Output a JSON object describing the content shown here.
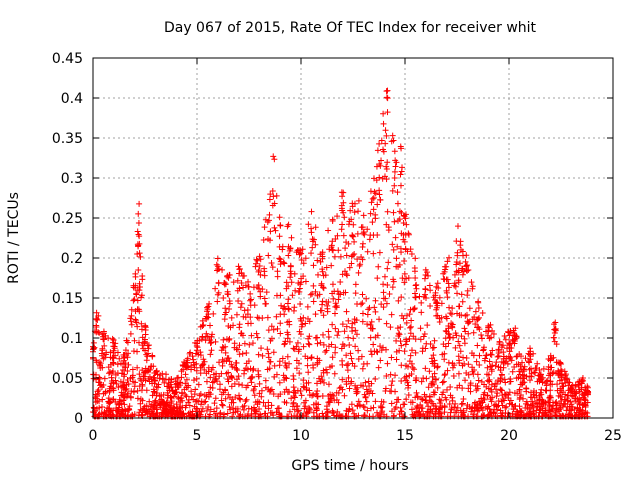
{
  "chart_data": {
    "type": "scatter",
    "title": "Day 067 of 2015, Rate Of TEC Index for receiver whit",
    "xlabel": "GPS time / hours",
    "ylabel": "ROTI / TECUs",
    "xlim": [
      0,
      25
    ],
    "ylim": [
      0,
      0.45
    ],
    "x_ticks": [
      "0",
      "5",
      "10",
      "15",
      "20",
      "25"
    ],
    "y_ticks": [
      "0",
      "0.05",
      "0.1",
      "0.15",
      "0.2",
      "0.25",
      "0.3",
      "0.35",
      "0.4",
      "0.45"
    ],
    "x_tick_values": [
      0,
      5,
      10,
      15,
      20,
      25
    ],
    "y_tick_values": [
      0,
      0.05,
      0.1,
      0.15,
      0.2,
      0.25,
      0.3,
      0.35,
      0.4,
      0.45
    ],
    "grid": true,
    "marker": "+",
    "color": "#ff0000",
    "x_extent": [
      0,
      23.8
    ],
    "envelope": [
      {
        "x": 0.0,
        "y": 0.09
      },
      {
        "x": 0.2,
        "y": 0.14
      },
      {
        "x": 0.5,
        "y": 0.11
      },
      {
        "x": 1.0,
        "y": 0.1
      },
      {
        "x": 1.5,
        "y": 0.08
      },
      {
        "x": 2.0,
        "y": 0.18
      },
      {
        "x": 2.2,
        "y": 0.27
      },
      {
        "x": 2.5,
        "y": 0.12
      },
      {
        "x": 3.0,
        "y": 0.06
      },
      {
        "x": 4.0,
        "y": 0.05
      },
      {
        "x": 4.5,
        "y": 0.08
      },
      {
        "x": 5.0,
        "y": 0.1
      },
      {
        "x": 5.5,
        "y": 0.14
      },
      {
        "x": 6.0,
        "y": 0.2
      },
      {
        "x": 6.5,
        "y": 0.18
      },
      {
        "x": 7.0,
        "y": 0.19
      },
      {
        "x": 7.5,
        "y": 0.17
      },
      {
        "x": 8.0,
        "y": 0.21
      },
      {
        "x": 8.5,
        "y": 0.28
      },
      {
        "x": 8.7,
        "y": 0.33
      },
      {
        "x": 9.0,
        "y": 0.25
      },
      {
        "x": 9.5,
        "y": 0.24
      },
      {
        "x": 10.0,
        "y": 0.21
      },
      {
        "x": 10.5,
        "y": 0.26
      },
      {
        "x": 11.0,
        "y": 0.22
      },
      {
        "x": 11.5,
        "y": 0.25
      },
      {
        "x": 12.0,
        "y": 0.29
      },
      {
        "x": 12.5,
        "y": 0.27
      },
      {
        "x": 13.0,
        "y": 0.28
      },
      {
        "x": 13.5,
        "y": 0.3
      },
      {
        "x": 13.8,
        "y": 0.36
      },
      {
        "x": 14.1,
        "y": 0.41
      },
      {
        "x": 14.5,
        "y": 0.36
      },
      {
        "x": 14.8,
        "y": 0.34
      },
      {
        "x": 15.0,
        "y": 0.26
      },
      {
        "x": 15.5,
        "y": 0.2
      },
      {
        "x": 16.0,
        "y": 0.19
      },
      {
        "x": 16.5,
        "y": 0.17
      },
      {
        "x": 17.0,
        "y": 0.2
      },
      {
        "x": 17.5,
        "y": 0.24
      },
      {
        "x": 18.0,
        "y": 0.2
      },
      {
        "x": 18.5,
        "y": 0.15
      },
      {
        "x": 19.0,
        "y": 0.13
      },
      {
        "x": 19.5,
        "y": 0.1
      },
      {
        "x": 20.0,
        "y": 0.11
      },
      {
        "x": 20.3,
        "y": 0.12
      },
      {
        "x": 20.7,
        "y": 0.07
      },
      {
        "x": 21.0,
        "y": 0.09
      },
      {
        "x": 21.5,
        "y": 0.06
      },
      {
        "x": 22.0,
        "y": 0.08
      },
      {
        "x": 22.2,
        "y": 0.12
      },
      {
        "x": 22.5,
        "y": 0.07
      },
      {
        "x": 23.0,
        "y": 0.04
      },
      {
        "x": 23.5,
        "y": 0.05
      },
      {
        "x": 23.8,
        "y": 0.04
      }
    ]
  }
}
